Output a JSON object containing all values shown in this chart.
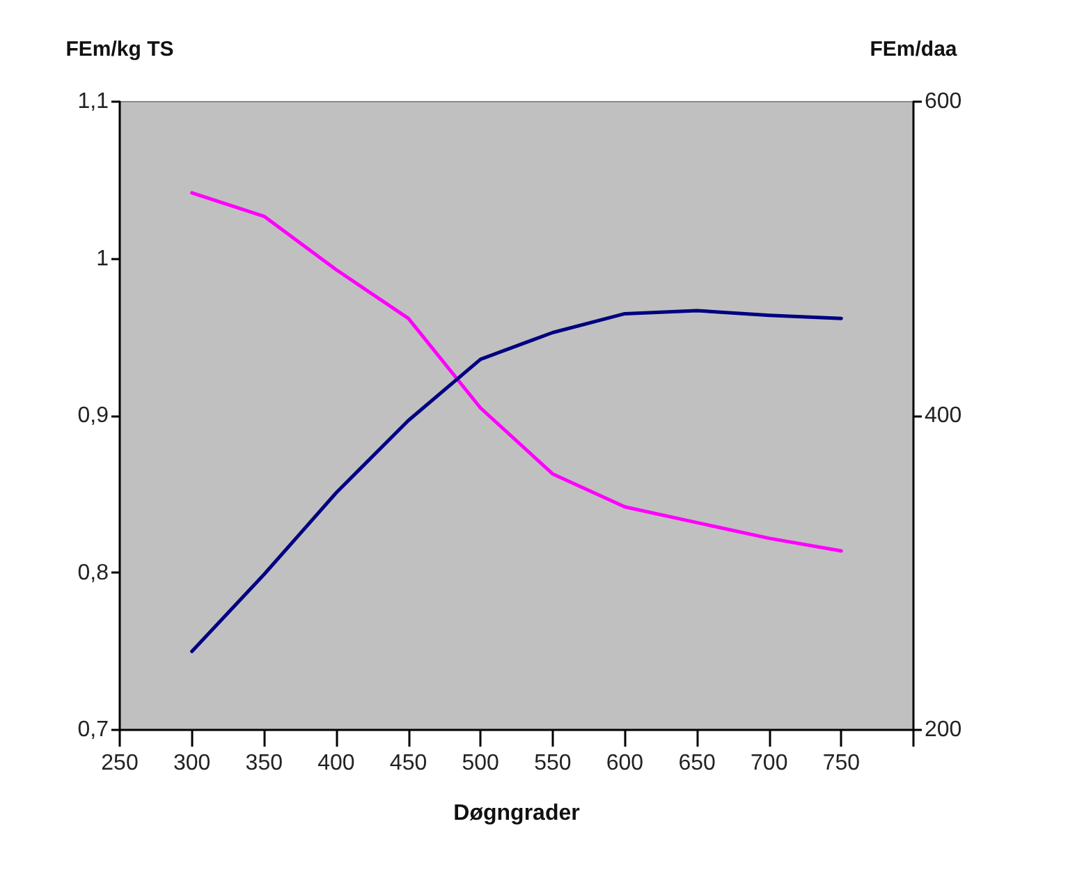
{
  "chart_data": {
    "type": "line",
    "xlabel": "Døgngrader",
    "ylabel": "FEm/kg TS",
    "y2label": "FEm/daa",
    "x": [
      300,
      350,
      400,
      450,
      500,
      550,
      600,
      650,
      700,
      750
    ],
    "series": [
      {
        "color": "#ff00ff",
        "values": [
          1.042,
          1.027,
          0.993,
          0.962,
          0.905,
          0.863,
          0.842,
          0.832,
          0.822,
          0.814
        ]
      },
      {
        "color": "#000080",
        "axis": "y2",
        "values": [
          250,
          299,
          351,
          397,
          436,
          453,
          465,
          467,
          464,
          462
        ]
      }
    ],
    "xlim": [
      250,
      800
    ],
    "xticks": [
      250,
      300,
      350,
      400,
      450,
      500,
      550,
      600,
      650,
      700,
      750,
      {
        "value": 800,
        "label": null
      }
    ],
    "ylim": [
      0.7,
      1.1
    ],
    "yticks": [
      {
        "value": 0.7,
        "label": "0,7"
      },
      {
        "value": 0.8,
        "label": "0,8"
      },
      {
        "value": 0.9,
        "label": "0,9"
      },
      1,
      {
        "value": 1.1,
        "label": "1,1"
      }
    ],
    "y2lim": [
      200,
      600
    ],
    "y2ticks": [
      200,
      400,
      600
    ],
    "grid": false,
    "marker": "none",
    "line_style": "solid"
  }
}
